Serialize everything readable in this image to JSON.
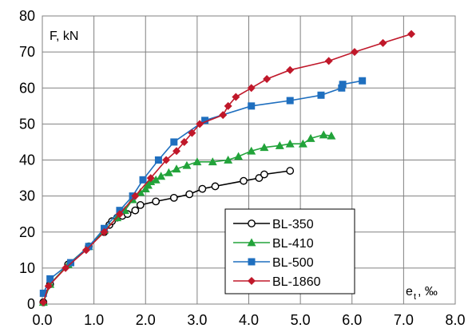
{
  "chart_data": {
    "type": "line",
    "ylabel": "F, kN",
    "xlabel_main": "e",
    "xlabel_sub": "t",
    "xlabel_unit": ", ‰",
    "xlim": [
      0,
      8
    ],
    "ylim": [
      0,
      80
    ],
    "x_ticks": [
      "0.0",
      "1.0",
      "2.0",
      "3.0",
      "4.0",
      "5.0",
      "6.0",
      "7.0",
      "8.0"
    ],
    "y_ticks": [
      "0",
      "10",
      "20",
      "30",
      "40",
      "50",
      "60",
      "70",
      "80"
    ],
    "x_tick_values": [
      0,
      1,
      2,
      3,
      4,
      5,
      6,
      7,
      8
    ],
    "y_tick_values": [
      0,
      10,
      20,
      30,
      40,
      50,
      60,
      70,
      80
    ],
    "grid": true,
    "legend_position": "bottom-right",
    "series": [
      {
        "name": "BL-350",
        "color": "#000000",
        "marker": "circle-open",
        "points": [
          [
            0.02,
            0.5
          ],
          [
            0.15,
            5.5
          ],
          [
            0.5,
            11
          ],
          [
            0.9,
            16
          ],
          [
            1.2,
            20
          ],
          [
            1.3,
            22
          ],
          [
            1.35,
            23
          ],
          [
            1.45,
            24
          ],
          [
            1.55,
            24.5
          ],
          [
            1.65,
            25
          ],
          [
            1.8,
            26
          ],
          [
            1.9,
            27.5
          ],
          [
            2.2,
            28.5
          ],
          [
            2.55,
            29.5
          ],
          [
            2.85,
            30.5
          ],
          [
            3.1,
            32
          ],
          [
            3.35,
            32.7
          ],
          [
            3.9,
            34.2
          ],
          [
            4.2,
            35
          ],
          [
            4.3,
            36
          ],
          [
            4.8,
            37
          ]
        ]
      },
      {
        "name": "BL-410",
        "color": "#22a33a",
        "marker": "triangle",
        "points": [
          [
            0.02,
            0.5
          ],
          [
            0.15,
            5.5
          ],
          [
            0.5,
            11
          ],
          [
            0.9,
            16
          ],
          [
            1.2,
            20.5
          ],
          [
            1.45,
            24
          ],
          [
            1.6,
            26
          ],
          [
            1.75,
            29
          ],
          [
            1.9,
            31
          ],
          [
            2.0,
            32
          ],
          [
            2.05,
            33
          ],
          [
            2.1,
            34
          ],
          [
            2.2,
            34.5
          ],
          [
            2.3,
            35.5
          ],
          [
            2.45,
            36.5
          ],
          [
            2.6,
            37.5
          ],
          [
            2.8,
            38.5
          ],
          [
            3.0,
            39.5
          ],
          [
            3.3,
            39.5
          ],
          [
            3.6,
            40
          ],
          [
            3.8,
            41
          ],
          [
            4.05,
            42.5
          ],
          [
            4.3,
            43.5
          ],
          [
            4.6,
            44
          ],
          [
            4.8,
            44.5
          ],
          [
            5.05,
            44.5
          ],
          [
            5.2,
            46
          ],
          [
            5.45,
            47
          ],
          [
            5.6,
            46.7
          ]
        ]
      },
      {
        "name": "BL-500",
        "color": "#1f6fbf",
        "marker": "square",
        "points": [
          [
            0.02,
            3
          ],
          [
            0.15,
            7
          ],
          [
            0.55,
            11.5
          ],
          [
            0.9,
            16
          ],
          [
            1.2,
            21
          ],
          [
            1.5,
            26
          ],
          [
            1.75,
            30
          ],
          [
            1.95,
            34.5
          ],
          [
            2.25,
            40
          ],
          [
            2.55,
            45
          ],
          [
            3.15,
            51
          ],
          [
            4.05,
            55
          ],
          [
            4.8,
            56.5
          ],
          [
            5.4,
            58
          ],
          [
            5.8,
            60
          ],
          [
            5.82,
            61
          ],
          [
            6.2,
            62
          ]
        ]
      },
      {
        "name": "BL-1860",
        "color": "#c0182a",
        "marker": "diamond",
        "points": [
          [
            0.02,
            0.5
          ],
          [
            0.12,
            5
          ],
          [
            0.45,
            10
          ],
          [
            0.85,
            15
          ],
          [
            1.2,
            20
          ],
          [
            1.5,
            25
          ],
          [
            1.8,
            30
          ],
          [
            2.1,
            35
          ],
          [
            2.4,
            40
          ],
          [
            2.6,
            42.5
          ],
          [
            2.75,
            45
          ],
          [
            2.9,
            47.5
          ],
          [
            3.05,
            50
          ],
          [
            3.5,
            52.5
          ],
          [
            3.6,
            55
          ],
          [
            3.75,
            57.5
          ],
          [
            4.05,
            60
          ],
          [
            4.35,
            62.5
          ],
          [
            4.8,
            65
          ],
          [
            5.55,
            67.5
          ],
          [
            6.05,
            70
          ],
          [
            6.6,
            72.5
          ],
          [
            7.15,
            75
          ]
        ]
      }
    ]
  }
}
